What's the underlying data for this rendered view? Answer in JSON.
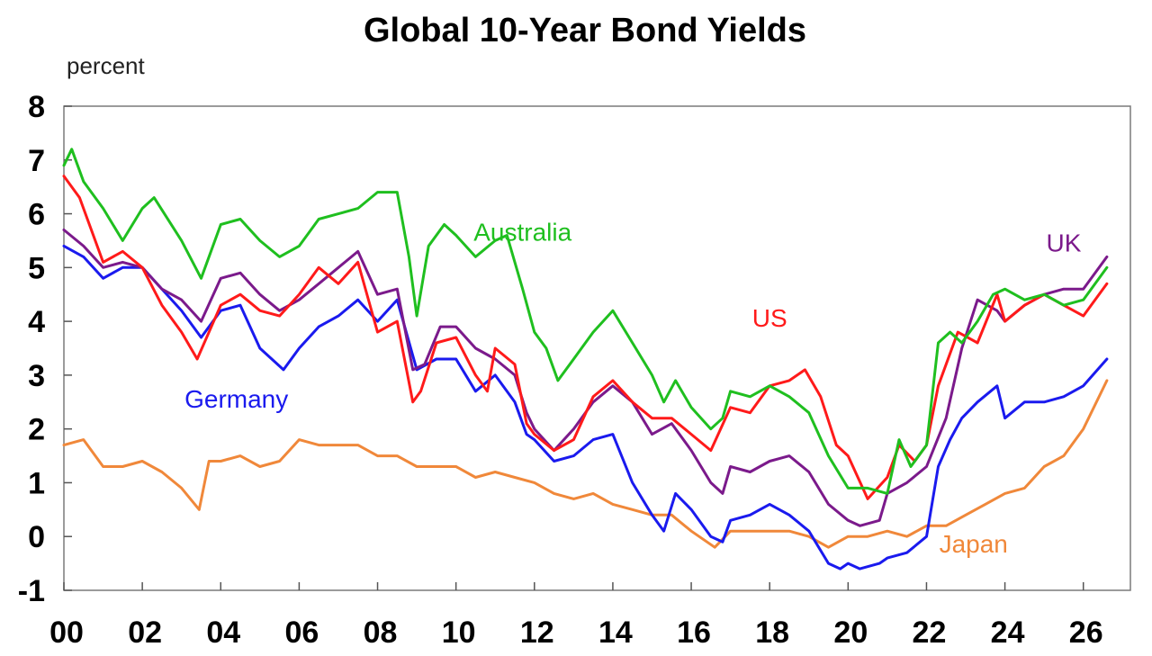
{
  "chart_data": {
    "type": "line",
    "title": "Global 10-Year Bond Yields",
    "ylabel": "percent",
    "xlabel": "",
    "ylim": [
      -1,
      8
    ],
    "xlim": [
      2000,
      2027.2
    ],
    "yticks": [
      "8",
      "7",
      "6",
      "5",
      "4",
      "3",
      "2",
      "1",
      "0",
      "-1"
    ],
    "ytick_values": [
      8,
      7,
      6,
      5,
      4,
      3,
      2,
      1,
      0,
      -1
    ],
    "xticks": [
      "00",
      "02",
      "04",
      "06",
      "08",
      "10",
      "12",
      "14",
      "16",
      "18",
      "20",
      "22",
      "24",
      "26"
    ],
    "xtick_values": [
      2000,
      2002,
      2004,
      2006,
      2008,
      2010,
      2012,
      2014,
      2016,
      2018,
      2020,
      2022,
      2024,
      2026
    ],
    "grid": false,
    "series": [
      {
        "name": "Australia",
        "color": "#1fbf1f",
        "x": [
          2000,
          2000.2,
          2000.5,
          2001,
          2001.5,
          2002,
          2002.3,
          2003,
          2003.5,
          2004,
          2004.5,
          2005,
          2005.5,
          2006,
          2006.5,
          2007,
          2007.5,
          2008,
          2008.5,
          2008.8,
          2009,
          2009.3,
          2009.7,
          2010,
          2010.5,
          2011,
          2011.3,
          2011.7,
          2012,
          2012.3,
          2012.6,
          2013,
          2013.5,
          2014,
          2014.5,
          2015,
          2015.3,
          2015.6,
          2016,
          2016.5,
          2016.8,
          2017,
          2017.5,
          2018,
          2018.5,
          2019,
          2019.5,
          2020,
          2020.5,
          2021,
          2021.3,
          2021.6,
          2022,
          2022.3,
          2022.6,
          2022.9,
          2023.3,
          2023.7,
          2024,
          2024.5,
          2025,
          2025.5,
          2026,
          2026.6
        ],
        "values": [
          6.9,
          7.2,
          6.6,
          6.1,
          5.5,
          6.1,
          6.3,
          5.5,
          4.8,
          5.8,
          5.9,
          5.5,
          5.2,
          5.4,
          5.9,
          6.0,
          6.1,
          6.4,
          6.4,
          5.2,
          4.1,
          5.4,
          5.8,
          5.6,
          5.2,
          5.5,
          5.6,
          4.6,
          3.8,
          3.5,
          2.9,
          3.3,
          3.8,
          4.2,
          3.6,
          3.0,
          2.5,
          2.9,
          2.4,
          2.0,
          2.2,
          2.7,
          2.6,
          2.8,
          2.6,
          2.3,
          1.5,
          0.9,
          0.9,
          0.8,
          1.8,
          1.3,
          1.7,
          3.6,
          3.8,
          3.6,
          4.0,
          4.5,
          4.6,
          4.4,
          4.5,
          4.3,
          4.4,
          5.0
        ]
      },
      {
        "name": "US",
        "color": "#ff1a1a",
        "x": [
          2000,
          2000.4,
          2001,
          2001.5,
          2002,
          2002.5,
          2003,
          2003.4,
          2004,
          2004.5,
          2005,
          2005.5,
          2006,
          2006.5,
          2007,
          2007.5,
          2008,
          2008.5,
          2008.9,
          2009.1,
          2009.5,
          2010,
          2010.5,
          2010.8,
          2011,
          2011.5,
          2011.8,
          2012,
          2012.5,
          2013,
          2013.5,
          2014,
          2014.5,
          2015,
          2015.5,
          2016,
          2016.5,
          2017,
          2017.5,
          2018,
          2018.5,
          2018.9,
          2019.3,
          2019.7,
          2020,
          2020.5,
          2021,
          2021.3,
          2021.7,
          2022,
          2022.3,
          2022.8,
          2023.3,
          2023.8,
          2024,
          2024.5,
          2025,
          2025.5,
          2026,
          2026.6
        ],
        "values": [
          6.7,
          6.3,
          5.1,
          5.3,
          5.0,
          4.3,
          3.8,
          3.3,
          4.3,
          4.5,
          4.2,
          4.1,
          4.5,
          5.0,
          4.7,
          5.1,
          3.8,
          4.0,
          2.5,
          2.7,
          3.6,
          3.7,
          3.0,
          2.7,
          3.5,
          3.2,
          2.1,
          1.9,
          1.6,
          1.8,
          2.6,
          2.9,
          2.5,
          2.2,
          2.2,
          1.9,
          1.6,
          2.4,
          2.3,
          2.8,
          2.9,
          3.1,
          2.6,
          1.7,
          1.5,
          0.7,
          1.1,
          1.7,
          1.4,
          1.7,
          2.8,
          3.8,
          3.6,
          4.5,
          4.0,
          4.3,
          4.5,
          4.3,
          4.1,
          4.7
        ]
      },
      {
        "name": "UK",
        "color": "#7b1a8b",
        "x": [
          2000,
          2000.5,
          2001,
          2001.5,
          2002,
          2002.5,
          2003,
          2003.5,
          2004,
          2004.5,
          2005,
          2005.5,
          2006,
          2006.5,
          2007,
          2007.5,
          2008,
          2008.5,
          2008.9,
          2009.2,
          2009.6,
          2010,
          2010.5,
          2011,
          2011.5,
          2011.8,
          2012,
          2012.5,
          2013,
          2013.5,
          2014,
          2014.5,
          2015,
          2015.5,
          2016,
          2016.5,
          2016.8,
          2017,
          2017.5,
          2018,
          2018.5,
          2019,
          2019.5,
          2020,
          2020.3,
          2020.8,
          2021,
          2021.5,
          2022,
          2022.5,
          2022.9,
          2023.3,
          2023.8,
          2024,
          2024.5,
          2025,
          2025.5,
          2026,
          2026.6
        ],
        "values": [
          5.7,
          5.4,
          5.0,
          5.1,
          5.0,
          4.6,
          4.4,
          4.0,
          4.8,
          4.9,
          4.5,
          4.2,
          4.4,
          4.7,
          5.0,
          5.3,
          4.5,
          4.6,
          3.1,
          3.2,
          3.9,
          3.9,
          3.5,
          3.3,
          3.0,
          2.3,
          2.0,
          1.6,
          2.0,
          2.5,
          2.8,
          2.5,
          1.9,
          2.1,
          1.6,
          1.0,
          0.8,
          1.3,
          1.2,
          1.4,
          1.5,
          1.2,
          0.6,
          0.3,
          0.2,
          0.3,
          0.8,
          1.0,
          1.3,
          2.2,
          3.5,
          4.4,
          4.2,
          4.0,
          4.3,
          4.5,
          4.6,
          4.6,
          5.2
        ]
      },
      {
        "name": "Germany",
        "color": "#1a1aee",
        "x": [
          2000,
          2000.5,
          2001,
          2001.5,
          2002,
          2002.5,
          2003,
          2003.5,
          2004,
          2004.5,
          2005,
          2005.6,
          2006,
          2006.5,
          2007,
          2007.5,
          2008,
          2008.5,
          2009,
          2009.5,
          2010,
          2010.5,
          2011,
          2011.5,
          2011.8,
          2012,
          2012.5,
          2013,
          2013.5,
          2014,
          2014.5,
          2015,
          2015.3,
          2015.6,
          2016,
          2016.5,
          2016.8,
          2017,
          2017.5,
          2018,
          2018.5,
          2019,
          2019.5,
          2019.8,
          2020,
          2020.3,
          2020.8,
          2021,
          2021.5,
          2022,
          2022.3,
          2022.6,
          2022.9,
          2023.3,
          2023.8,
          2024,
          2024.5,
          2025,
          2025.5,
          2026,
          2026.6
        ],
        "values": [
          5.4,
          5.2,
          4.8,
          5.0,
          5.0,
          4.6,
          4.2,
          3.7,
          4.2,
          4.3,
          3.5,
          3.1,
          3.5,
          3.9,
          4.1,
          4.4,
          4.0,
          4.4,
          3.1,
          3.3,
          3.3,
          2.7,
          3.0,
          2.5,
          1.9,
          1.8,
          1.4,
          1.5,
          1.8,
          1.9,
          1.0,
          0.4,
          0.1,
          0.8,
          0.5,
          0.0,
          -0.1,
          0.3,
          0.4,
          0.6,
          0.4,
          0.1,
          -0.5,
          -0.6,
          -0.5,
          -0.6,
          -0.5,
          -0.4,
          -0.3,
          0.0,
          1.3,
          1.8,
          2.2,
          2.5,
          2.8,
          2.2,
          2.5,
          2.5,
          2.6,
          2.8,
          3.3
        ]
      },
      {
        "name": "Japan",
        "color": "#f0883a",
        "x": [
          2000,
          2000.5,
          2001,
          2001.5,
          2002,
          2002.5,
          2003,
          2003.45,
          2003.7,
          2004,
          2004.5,
          2005,
          2005.5,
          2006,
          2006.5,
          2007,
          2007.5,
          2008,
          2008.5,
          2009,
          2009.5,
          2010,
          2010.5,
          2011,
          2011.5,
          2012,
          2012.5,
          2013,
          2013.5,
          2014,
          2014.5,
          2015,
          2015.5,
          2016,
          2016.6,
          2017,
          2017.5,
          2018,
          2018.5,
          2019,
          2019.5,
          2020,
          2020.5,
          2021,
          2021.5,
          2022,
          2022.5,
          2023,
          2023.5,
          2024,
          2024.5,
          2025,
          2025.5,
          2026,
          2026.6
        ],
        "values": [
          1.7,
          1.8,
          1.3,
          1.3,
          1.4,
          1.2,
          0.9,
          0.5,
          1.4,
          1.4,
          1.5,
          1.3,
          1.4,
          1.8,
          1.7,
          1.7,
          1.7,
          1.5,
          1.5,
          1.3,
          1.3,
          1.3,
          1.1,
          1.2,
          1.1,
          1.0,
          0.8,
          0.7,
          0.8,
          0.6,
          0.5,
          0.4,
          0.4,
          0.1,
          -0.2,
          0.1,
          0.1,
          0.1,
          0.1,
          0.0,
          -0.2,
          0.0,
          0.0,
          0.1,
          0.0,
          0.2,
          0.2,
          0.4,
          0.6,
          0.8,
          0.9,
          1.3,
          1.5,
          2.0,
          2.9
        ]
      }
    ],
    "annotations": [
      {
        "text": "Australia",
        "series": "Australia",
        "x": 2011.7,
        "y": 5.5
      },
      {
        "text": "US",
        "series": "US",
        "x": 2018.0,
        "y": 3.9
      },
      {
        "text": "UK",
        "series": "UK",
        "x": 2025.5,
        "y": 5.3
      },
      {
        "text": "Germany",
        "series": "Germany",
        "x": 2004.4,
        "y": 2.4
      },
      {
        "text": "Japan",
        "series": "Japan",
        "x": 2023.2,
        "y": -0.3
      }
    ]
  }
}
